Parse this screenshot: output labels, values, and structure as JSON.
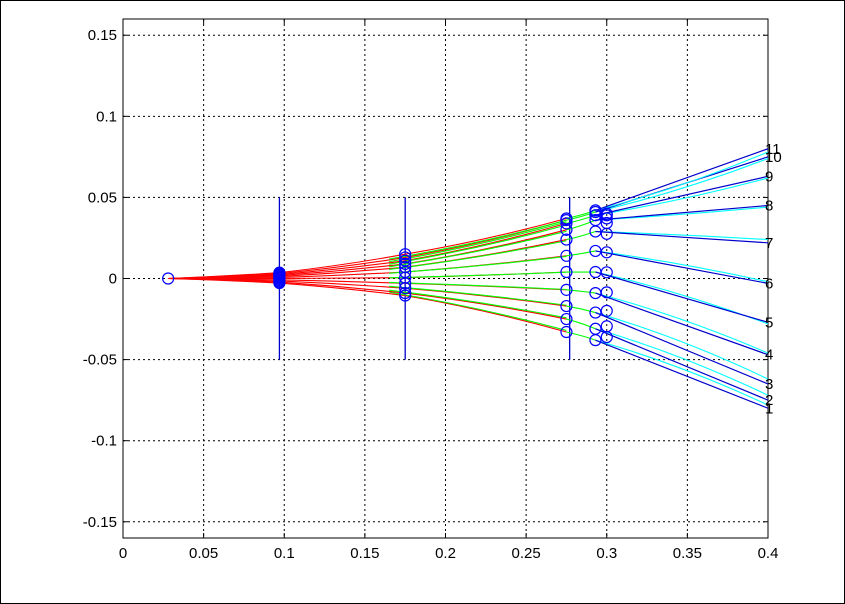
{
  "chart_data": {
    "type": "line",
    "title": "",
    "xlabel": "",
    "ylabel": "",
    "xlim": [
      0,
      0.4
    ],
    "ylim": [
      -0.16,
      0.16
    ],
    "grid": true,
    "x_ticks": [
      "0",
      "0.05",
      "0.1",
      "0.15",
      "0.2",
      "0.25",
      "0.3",
      "0.35",
      "0.4"
    ],
    "y_ticks": [
      "0.15",
      "0.1",
      "0.05",
      "0",
      "-0.05",
      "-0.1",
      "-0.15"
    ],
    "colors": {
      "segment_1": "#ff0000",
      "segment_2": "#00ff00",
      "segment_3": "#00ffff",
      "rays_blue": "#0000cc",
      "markers": "#0000ff",
      "grid": "#000000"
    },
    "source_point": {
      "x": 0.028,
      "y": 0
    },
    "lens_planes": [
      {
        "x": 0.097,
        "y_range": [
          -0.05,
          0.05
        ]
      },
      {
        "x": 0.175,
        "y_range": [
          -0.05,
          0.05
        ]
      },
      {
        "x": 0.277,
        "y_range": [
          -0.05,
          0.05
        ]
      }
    ],
    "rays": [
      {
        "label": "1",
        "y097": -0.0028,
        "y175": -0.0105,
        "y275": -0.033,
        "y293": -0.038,
        "y400_blue": -0.08,
        "y400_cyan": -0.078
      },
      {
        "label": "2",
        "y097": -0.0022,
        "y175": -0.009,
        "y275": -0.025,
        "y293": -0.031,
        "y400_blue": -0.075,
        "y400_cyan": -0.072
      },
      {
        "label": "3",
        "y097": -0.0015,
        "y175": -0.006,
        "y275": -0.017,
        "y293": -0.021,
        "y400_blue": -0.065,
        "y400_cyan": -0.062
      },
      {
        "label": "4",
        "y097": -0.0008,
        "y175": -0.003,
        "y275": -0.007,
        "y293": -0.009,
        "y400_blue": -0.047,
        "y400_cyan": -0.046
      },
      {
        "label": "5",
        "y097": 0.0,
        "y175": 0.0005,
        "y275": 0.004,
        "y293": 0.004,
        "y400_blue": -0.027,
        "y400_cyan": -0.028
      },
      {
        "label": "6",
        "y097": 0.0006,
        "y175": 0.004,
        "y275": 0.014,
        "y293": 0.017,
        "y400_blue": -0.003,
        "y400_cyan": -0.002
      },
      {
        "label": "7",
        "y097": 0.0012,
        "y175": 0.007,
        "y275": 0.024,
        "y293": 0.029,
        "y400_blue": 0.022,
        "y400_cyan": 0.024
      },
      {
        "label": "8",
        "y097": 0.0018,
        "y175": 0.009,
        "y275": 0.03,
        "y293": 0.036,
        "y400_blue": 0.045,
        "y400_cyan": 0.044
      },
      {
        "label": "9",
        "y097": 0.0024,
        "y175": 0.011,
        "y275": 0.034,
        "y293": 0.039,
        "y400_blue": 0.063,
        "y400_cyan": 0.062
      },
      {
        "label": "10",
        "y097": 0.003,
        "y175": 0.013,
        "y275": 0.036,
        "y293": 0.041,
        "y400_blue": 0.075,
        "y400_cyan": 0.074
      },
      {
        "label": "11",
        "y097": 0.0036,
        "y175": 0.015,
        "y275": 0.037,
        "y293": 0.042,
        "y400_blue": 0.08,
        "y400_cyan": 0.078
      }
    ]
  }
}
